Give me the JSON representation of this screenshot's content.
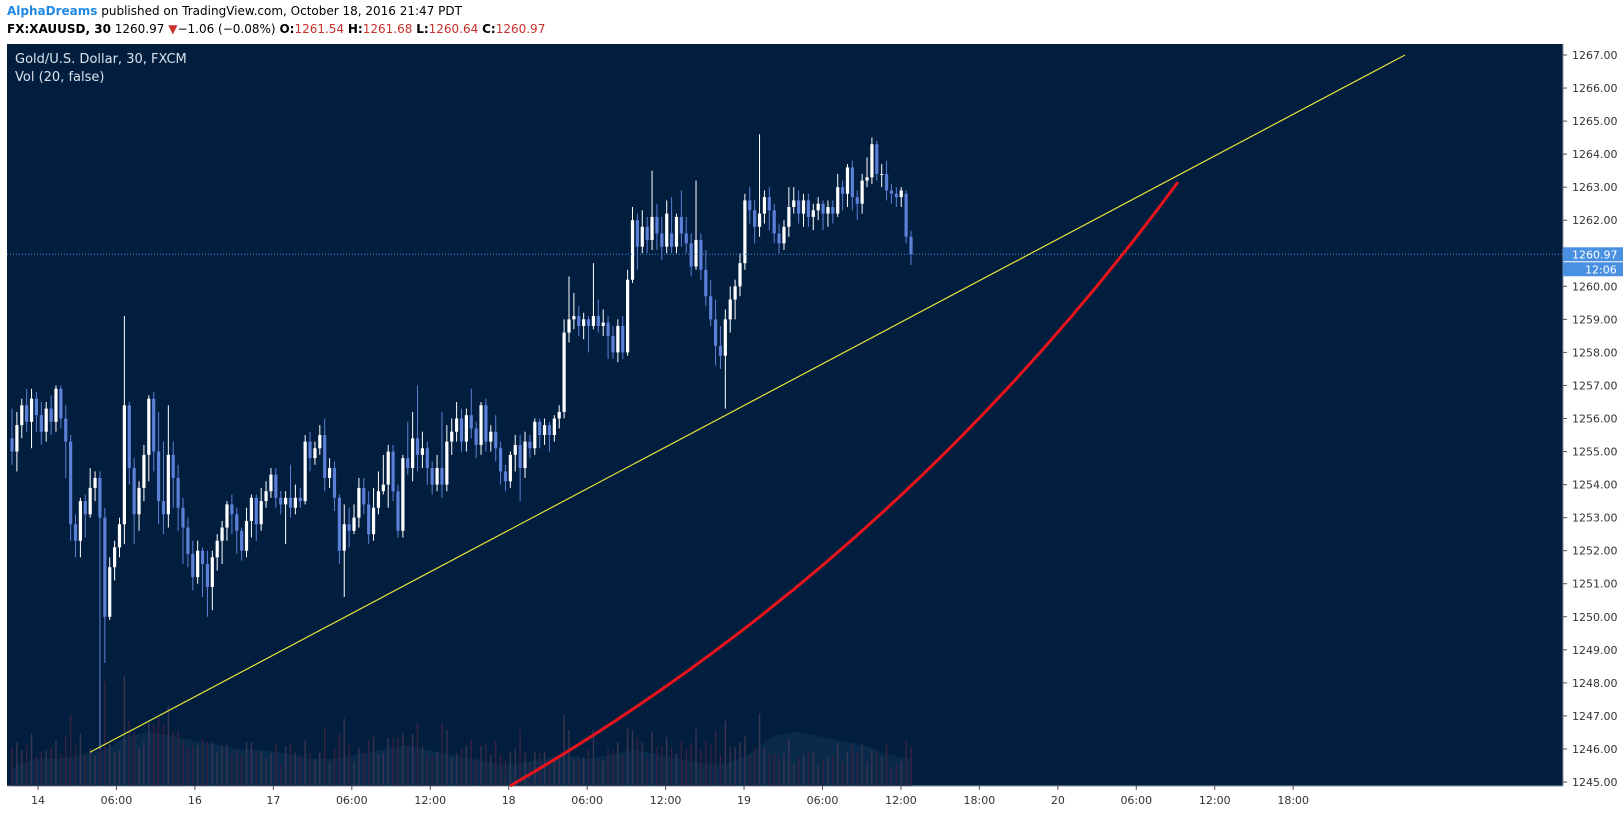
{
  "header": {
    "author": "AlphaDreams",
    "published_text": "published on TradingView.com, October 18, 2016 21:47 PDT",
    "symbol": "FX:XAUUSD, 30",
    "last": "1260.97",
    "down_arrow": "▼",
    "change": "−1.06 (−0.08%)",
    "o_label": "O:",
    "o_value": "1261.54",
    "h_label": "H:",
    "h_value": "1261.68",
    "l_label": "L:",
    "l_value": "1260.64",
    "c_label": "C:",
    "c_value": "1260.97"
  },
  "colors": {
    "background": "#021e3f",
    "up_candle": "#ffffff",
    "down_candle": "#5c7fd8",
    "trendline": "#e6e23a",
    "curve": "#e8141b",
    "price_marker": "#4a90e2"
  },
  "chart_data": {
    "type": "candlestick",
    "title": "Gold/U.S. Dollar, 30, FXCM",
    "indicator": "Vol (20, false)",
    "ylim": [
      1245,
      1267
    ],
    "y_ticks": [
      "1245.00",
      "1246.00",
      "1247.00",
      "1248.00",
      "1249.00",
      "1250.00",
      "1251.00",
      "1252.00",
      "1253.00",
      "1254.00",
      "1255.00",
      "1256.00",
      "1257.00",
      "1258.00",
      "1259.00",
      "1260.00",
      "1261.00",
      "1262.00",
      "1263.00",
      "1264.00",
      "1265.00",
      "1266.00",
      "1267.00"
    ],
    "x_ticks": [
      "14",
      "06:00",
      "16",
      "17",
      "06:00",
      "12:00",
      "18",
      "06:00",
      "12:00",
      "19",
      "06:00",
      "12:00",
      "18:00",
      "20",
      "06:00",
      "12:00",
      "18:00"
    ],
    "current_price": "1260.97",
    "countdown": "12:06",
    "candles": [
      [
        1255.4,
        1255.0,
        1256.3,
        1254.6
      ],
      [
        1255.0,
        1255.8,
        1256.2,
        1254.4
      ],
      [
        1255.8,
        1256.4,
        1256.6,
        1255.4
      ],
      [
        1256.4,
        1255.9,
        1256.9,
        1255.6
      ],
      [
        1255.9,
        1256.6,
        1256.9,
        1255.1
      ],
      [
        1256.6,
        1256.1,
        1256.8,
        1255.6
      ],
      [
        1256.1,
        1255.6,
        1256.5,
        1255.2
      ],
      [
        1255.6,
        1256.3,
        1256.5,
        1255.3
      ],
      [
        1256.3,
        1255.9,
        1256.7,
        1255.5
      ],
      [
        1255.9,
        1256.9,
        1257.0,
        1255.6
      ],
      [
        1256.9,
        1256.0,
        1257.0,
        1255.7
      ],
      [
        1256.0,
        1255.3,
        1256.4,
        1254.2
      ],
      [
        1255.3,
        1252.8,
        1255.5,
        1252.3
      ],
      [
        1252.8,
        1252.3,
        1253.1,
        1251.8
      ],
      [
        1252.3,
        1253.5,
        1253.6,
        1251.8
      ],
      [
        1253.5,
        1253.1,
        1253.7,
        1252.4
      ],
      [
        1253.1,
        1253.9,
        1254.5,
        1253.0
      ],
      [
        1253.9,
        1254.2,
        1254.4,
        1253.5
      ],
      [
        1254.2,
        1253.0,
        1254.4,
        1246.0
      ],
      [
        1253.0,
        1250.0,
        1253.3,
        1248.6
      ],
      [
        1250.0,
        1251.5,
        1251.8,
        1249.9
      ],
      [
        1251.5,
        1252.1,
        1252.3,
        1251.1
      ],
      [
        1252.1,
        1252.8,
        1253.0,
        1251.8
      ],
      [
        1252.8,
        1256.4,
        1259.1,
        1252.2
      ],
      [
        1256.4,
        1254.5,
        1256.5,
        1254.0
      ],
      [
        1254.5,
        1253.1,
        1254.8,
        1252.2
      ],
      [
        1253.1,
        1253.9,
        1254.1,
        1252.6
      ],
      [
        1253.9,
        1254.9,
        1255.2,
        1253.5
      ],
      [
        1254.9,
        1256.6,
        1256.7,
        1254.1
      ],
      [
        1256.6,
        1255.0,
        1256.8,
        1254.4
      ],
      [
        1255.0,
        1253.5,
        1256.2,
        1252.8
      ],
      [
        1253.5,
        1253.1,
        1255.3,
        1252.5
      ],
      [
        1253.1,
        1254.9,
        1256.4,
        1252.7
      ],
      [
        1254.9,
        1254.2,
        1255.3,
        1253.3
      ],
      [
        1254.2,
        1253.3,
        1254.6,
        1252.6
      ],
      [
        1253.3,
        1252.7,
        1253.6,
        1251.6
      ],
      [
        1252.7,
        1251.9,
        1253.0,
        1251.5
      ],
      [
        1251.9,
        1251.2,
        1252.3,
        1250.8
      ],
      [
        1251.2,
        1252.0,
        1252.3,
        1251.0
      ],
      [
        1252.0,
        1251.6,
        1252.1,
        1250.6
      ],
      [
        1251.6,
        1250.9,
        1252.0,
        1250.0
      ],
      [
        1250.9,
        1251.8,
        1252.0,
        1250.2
      ],
      [
        1251.8,
        1252.3,
        1252.5,
        1251.4
      ],
      [
        1252.3,
        1252.7,
        1252.9,
        1251.6
      ],
      [
        1252.7,
        1253.4,
        1253.5,
        1252.3
      ],
      [
        1253.4,
        1253.1,
        1253.7,
        1252.5
      ],
      [
        1253.1,
        1252.6,
        1253.3,
        1251.9
      ],
      [
        1252.6,
        1252.0,
        1252.7,
        1251.7
      ],
      [
        1252.0,
        1252.9,
        1253.3,
        1251.8
      ],
      [
        1252.9,
        1253.6,
        1253.7,
        1252.4
      ],
      [
        1253.6,
        1252.8,
        1253.7,
        1252.3
      ],
      [
        1252.8,
        1253.5,
        1253.9,
        1252.6
      ],
      [
        1253.5,
        1253.8,
        1254.1,
        1253.3
      ],
      [
        1253.8,
        1254.3,
        1254.5,
        1253.6
      ],
      [
        1254.3,
        1253.6,
        1254.5,
        1253.3
      ],
      [
        1253.6,
        1253.4,
        1253.8,
        1253.1
      ],
      [
        1253.4,
        1253.6,
        1253.8,
        1252.2
      ],
      [
        1253.6,
        1253.3,
        1254.6,
        1253.0
      ],
      [
        1253.3,
        1253.6,
        1254.0,
        1253.1
      ],
      [
        1253.6,
        1253.5,
        1253.9,
        1253.3
      ],
      [
        1253.5,
        1255.3,
        1255.5,
        1253.4
      ],
      [
        1255.3,
        1254.8,
        1255.6,
        1254.4
      ],
      [
        1254.8,
        1255.1,
        1255.3,
        1254.6
      ],
      [
        1255.1,
        1255.5,
        1255.8,
        1254.9
      ],
      [
        1255.5,
        1254.2,
        1256.0,
        1253.8
      ],
      [
        1254.2,
        1254.5,
        1254.8,
        1253.9
      ],
      [
        1254.5,
        1253.6,
        1254.7,
        1253.2
      ],
      [
        1253.6,
        1252.0,
        1253.7,
        1251.6
      ],
      [
        1252.0,
        1252.8,
        1253.4,
        1250.6
      ],
      [
        1252.8,
        1252.6,
        1253.3,
        1252.1
      ],
      [
        1252.6,
        1253.0,
        1253.4,
        1252.5
      ],
      [
        1253.0,
        1253.9,
        1254.2,
        1252.7
      ],
      [
        1253.9,
        1253.4,
        1254.2,
        1253.1
      ],
      [
        1253.4,
        1252.5,
        1253.8,
        1252.2
      ],
      [
        1252.5,
        1253.3,
        1253.9,
        1252.3
      ],
      [
        1253.3,
        1253.8,
        1254.4,
        1253.1
      ],
      [
        1253.8,
        1254.0,
        1254.9,
        1253.7
      ],
      [
        1254.0,
        1255.0,
        1255.2,
        1253.3
      ],
      [
        1255.0,
        1253.8,
        1255.2,
        1253.5
      ],
      [
        1253.8,
        1252.6,
        1254.0,
        1252.4
      ],
      [
        1252.6,
        1254.8,
        1254.9,
        1252.4
      ],
      [
        1254.8,
        1254.5,
        1255.9,
        1254.3
      ],
      [
        1254.5,
        1255.4,
        1256.2,
        1254.1
      ],
      [
        1255.4,
        1254.9,
        1257.0,
        1254.4
      ],
      [
        1254.9,
        1255.1,
        1255.6,
        1254.5
      ],
      [
        1255.1,
        1254.5,
        1255.3,
        1254.0
      ],
      [
        1254.5,
        1254.0,
        1254.7,
        1253.7
      ],
      [
        1254.0,
        1254.5,
        1254.9,
        1253.8
      ],
      [
        1254.5,
        1254.0,
        1256.2,
        1253.6
      ],
      [
        1254.0,
        1255.3,
        1255.8,
        1253.8
      ],
      [
        1255.3,
        1255.6,
        1256.0,
        1254.9
      ],
      [
        1255.6,
        1256.0,
        1256.5,
        1255.3
      ],
      [
        1256.0,
        1255.3,
        1256.3,
        1255.0
      ],
      [
        1255.3,
        1256.1,
        1256.3,
        1255.0
      ],
      [
        1256.1,
        1255.7,
        1256.9,
        1255.4
      ],
      [
        1255.7,
        1255.2,
        1255.9,
        1254.8
      ],
      [
        1255.2,
        1256.4,
        1256.5,
        1254.9
      ],
      [
        1256.4,
        1255.3,
        1256.6,
        1255.0
      ],
      [
        1255.3,
        1255.6,
        1255.8,
        1255.0
      ],
      [
        1255.6,
        1255.1,
        1256.1,
        1254.7
      ],
      [
        1255.1,
        1254.4,
        1255.3,
        1254.0
      ],
      [
        1254.4,
        1254.1,
        1254.6,
        1253.8
      ],
      [
        1254.1,
        1254.9,
        1255.0,
        1253.9
      ],
      [
        1254.9,
        1255.2,
        1255.5,
        1254.4
      ],
      [
        1255.2,
        1254.5,
        1255.5,
        1253.5
      ],
      [
        1254.5,
        1255.3,
        1255.6,
        1254.2
      ],
      [
        1255.3,
        1255.1,
        1255.5,
        1254.8
      ],
      [
        1255.1,
        1255.9,
        1256.0,
        1254.9
      ],
      [
        1255.9,
        1255.5,
        1256.0,
        1255.1
      ],
      [
        1255.5,
        1255.8,
        1256.0,
        1255.2
      ],
      [
        1255.8,
        1255.5,
        1255.9,
        1255.0
      ],
      [
        1255.5,
        1256.0,
        1256.1,
        1255.3
      ],
      [
        1256.0,
        1256.2,
        1256.4,
        1255.7
      ],
      [
        1256.2,
        1258.6,
        1259.0,
        1256.0
      ],
      [
        1258.6,
        1259.0,
        1260.3,
        1258.3
      ],
      [
        1259.0,
        1259.1,
        1259.8,
        1258.7
      ],
      [
        1259.1,
        1258.8,
        1259.4,
        1258.5
      ],
      [
        1258.8,
        1259.0,
        1259.2,
        1258.4
      ],
      [
        1259.0,
        1258.8,
        1259.1,
        1258.0
      ],
      [
        1258.8,
        1259.1,
        1260.7,
        1258.7
      ],
      [
        1259.1,
        1258.8,
        1259.6,
        1258.6
      ],
      [
        1258.8,
        1258.9,
        1259.3,
        1258.5
      ],
      [
        1258.9,
        1258.5,
        1259.1,
        1257.8
      ],
      [
        1258.5,
        1258.0,
        1258.8,
        1257.8
      ],
      [
        1258.0,
        1258.8,
        1259.0,
        1257.7
      ],
      [
        1258.8,
        1258.0,
        1259.1,
        1257.8
      ],
      [
        1258.0,
        1260.2,
        1260.5,
        1257.9
      ],
      [
        1260.2,
        1262.0,
        1262.4,
        1260.1
      ],
      [
        1262.0,
        1261.2,
        1262.2,
        1260.5
      ],
      [
        1261.2,
        1261.8,
        1262.3,
        1261.0
      ],
      [
        1261.8,
        1261.4,
        1262.1,
        1261.0
      ],
      [
        1261.4,
        1262.1,
        1263.5,
        1261.1
      ],
      [
        1262.1,
        1261.6,
        1262.5,
        1261.1
      ],
      [
        1261.6,
        1261.2,
        1262.1,
        1260.8
      ],
      [
        1261.2,
        1262.2,
        1262.6,
        1261.0
      ],
      [
        1261.6,
        1261.2,
        1262.7,
        1261.0
      ],
      [
        1261.2,
        1262.1,
        1262.2,
        1261.0
      ],
      [
        1262.1,
        1261.6,
        1262.9,
        1261.2
      ],
      [
        1261.6,
        1261.3,
        1262.1,
        1261.0
      ],
      [
        1261.3,
        1260.6,
        1261.6,
        1260.3
      ],
      [
        1260.6,
        1261.4,
        1263.2,
        1260.5
      ],
      [
        1261.4,
        1260.5,
        1261.6,
        1260.2
      ],
      [
        1260.5,
        1259.7,
        1261.1,
        1259.4
      ],
      [
        1259.7,
        1259.0,
        1260.2,
        1258.8
      ],
      [
        1259.0,
        1258.2,
        1259.6,
        1257.6
      ],
      [
        1258.2,
        1257.9,
        1258.8,
        1257.5
      ],
      [
        1257.9,
        1259.0,
        1259.3,
        1256.3
      ],
      [
        1259.0,
        1259.6,
        1260.0,
        1258.6
      ],
      [
        1259.6,
        1260.0,
        1260.2,
        1259.0
      ],
      [
        1260.0,
        1260.7,
        1261.0,
        1259.7
      ],
      [
        1260.7,
        1262.6,
        1262.8,
        1260.5
      ],
      [
        1262.6,
        1262.3,
        1263.0,
        1261.9
      ],
      [
        1262.3,
        1261.8,
        1262.6,
        1261.3
      ],
      [
        1261.8,
        1262.2,
        1264.6,
        1261.5
      ],
      [
        1262.2,
        1262.7,
        1262.9,
        1261.9
      ],
      [
        1262.7,
        1262.3,
        1263.0,
        1261.7
      ],
      [
        1262.3,
        1261.6,
        1262.5,
        1261.3
      ],
      [
        1261.6,
        1261.3,
        1261.9,
        1261.0
      ],
      [
        1261.3,
        1261.8,
        1262.0,
        1261.1
      ],
      [
        1261.8,
        1262.4,
        1263.0,
        1261.5
      ],
      [
        1262.4,
        1262.6,
        1263.0,
        1262.2
      ],
      [
        1262.6,
        1262.2,
        1262.9,
        1261.9
      ],
      [
        1262.2,
        1262.6,
        1262.8,
        1261.8
      ],
      [
        1262.6,
        1262.1,
        1262.8,
        1261.8
      ],
      [
        1262.1,
        1262.3,
        1262.5,
        1261.7
      ],
      [
        1262.3,
        1262.5,
        1262.7,
        1262.0
      ],
      [
        1262.5,
        1262.2,
        1262.6,
        1261.7
      ],
      [
        1262.2,
        1262.4,
        1262.6,
        1261.8
      ],
      [
        1262.4,
        1262.2,
        1262.6,
        1261.9
      ],
      [
        1262.2,
        1263.0,
        1263.4,
        1262.1
      ],
      [
        1263.0,
        1262.8,
        1263.2,
        1262.3
      ],
      [
        1262.8,
        1263.6,
        1263.7,
        1262.4
      ],
      [
        1263.6,
        1262.7,
        1263.8,
        1262.3
      ],
      [
        1262.7,
        1262.5,
        1262.9,
        1262.0
      ],
      [
        1262.5,
        1263.2,
        1263.4,
        1262.2
      ],
      [
        1263.2,
        1263.3,
        1263.9,
        1263.0
      ],
      [
        1263.3,
        1264.3,
        1264.5,
        1263.1
      ],
      [
        1264.3,
        1263.4,
        1264.4,
        1263.2
      ],
      [
        1263.4,
        1263.4,
        1263.7,
        1263.0
      ],
      [
        1263.4,
        1262.9,
        1263.8,
        1262.6
      ],
      [
        1262.9,
        1262.8,
        1263.1,
        1262.5
      ],
      [
        1262.8,
        1262.7,
        1263.0,
        1262.4
      ],
      [
        1262.7,
        1262.9,
        1263.0,
        1262.4
      ],
      [
        1262.8,
        1261.5,
        1262.9,
        1261.3
      ],
      [
        1261.5,
        1260.97,
        1261.68,
        1260.64
      ]
    ],
    "volume_profile": [
      0.2,
      0.3,
      0.3,
      0.35,
      0.4,
      0.55,
      0.6,
      0.55,
      0.5,
      0.45,
      0.4,
      0.4,
      0.35,
      0.3,
      0.3,
      0.35,
      0.4,
      0.45,
      0.4,
      0.35,
      0.3,
      0.25,
      0.25,
      0.3,
      0.35,
      0.3,
      0.35,
      0.4,
      0.35,
      0.3,
      0.25,
      0.25,
      0.35,
      0.55,
      0.6,
      0.55,
      0.5,
      0.45,
      0.35,
      0.3
    ]
  }
}
